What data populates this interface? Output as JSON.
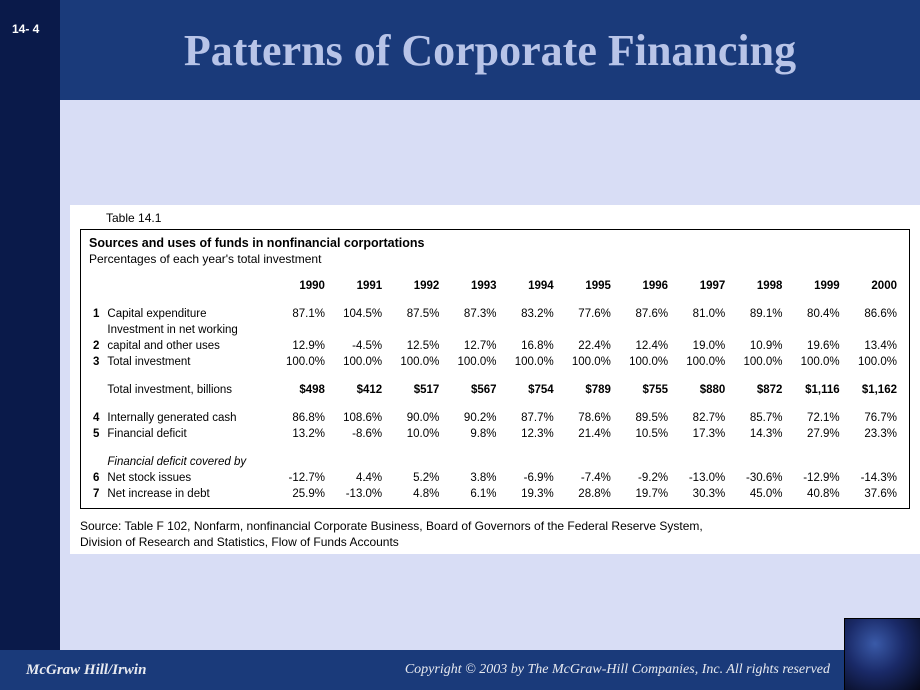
{
  "page_number": "14- 4",
  "title": "Patterns of Corporate Financing",
  "footer_left": "McGraw Hill/Irwin",
  "footer_right": "Copyright © 2003 by The McGraw-Hill Companies, Inc. All rights reserved",
  "table": {
    "label": "Table 14.1",
    "subtitle": "Sources and uses of funds in nonfinancial corportations",
    "subcaption": "Percentages of each year's total investment",
    "years": [
      "1990",
      "1991",
      "1992",
      "1993",
      "1994",
      "1995",
      "1996",
      "1997",
      "1998",
      "1999",
      "2000"
    ],
    "rows": [
      {
        "idx": "1",
        "label": "Capital expenditure",
        "cells": [
          "87.1%",
          "104.5%",
          "87.5%",
          "87.3%",
          "83.2%",
          "77.6%",
          "87.6%",
          "81.0%",
          "89.1%",
          "80.4%",
          "86.6%"
        ]
      },
      {
        "idx": "",
        "label": "Investment in net working",
        "cells": [
          "",
          "",
          "",
          "",
          "",
          "",
          "",
          "",
          "",
          "",
          ""
        ]
      },
      {
        "idx": "2",
        "label": "capital and other uses",
        "cells": [
          "12.9%",
          "-4.5%",
          "12.5%",
          "12.7%",
          "16.8%",
          "22.4%",
          "12.4%",
          "19.0%",
          "10.9%",
          "19.6%",
          "13.4%"
        ]
      },
      {
        "idx": "3",
        "label": "Total investment",
        "cells": [
          "100.0%",
          "100.0%",
          "100.0%",
          "100.0%",
          "100.0%",
          "100.0%",
          "100.0%",
          "100.0%",
          "100.0%",
          "100.0%",
          "100.0%"
        ]
      }
    ],
    "billions": {
      "label": "Total investment, billions",
      "cells": [
        "$498",
        "$412",
        "$517",
        "$567",
        "$754",
        "$789",
        "$755",
        "$880",
        "$872",
        "$1,116",
        "$1,162"
      ]
    },
    "rows2": [
      {
        "idx": "4",
        "label": "Internally generated cash",
        "cells": [
          "86.8%",
          "108.6%",
          "90.0%",
          "90.2%",
          "87.7%",
          "78.6%",
          "89.5%",
          "82.7%",
          "85.7%",
          "72.1%",
          "76.7%"
        ]
      },
      {
        "idx": "5",
        "label": "Financial deficit",
        "cells": [
          "13.2%",
          "-8.6%",
          "10.0%",
          "9.8%",
          "12.3%",
          "21.4%",
          "10.5%",
          "17.3%",
          "14.3%",
          "27.9%",
          "23.3%"
        ]
      }
    ],
    "deficit_header": "Financial deficit covered by",
    "rows3": [
      {
        "idx": "6",
        "label": "Net stock issues",
        "cells": [
          "-12.7%",
          "4.4%",
          "5.2%",
          "3.8%",
          "-6.9%",
          "-7.4%",
          "-9.2%",
          "-13.0%",
          "-30.6%",
          "-12.9%",
          "-14.3%"
        ]
      },
      {
        "idx": "7",
        "label": "Net increase in debt",
        "cells": [
          "25.9%",
          "-13.0%",
          "4.8%",
          "6.1%",
          "19.3%",
          "28.8%",
          "19.7%",
          "30.3%",
          "45.0%",
          "40.8%",
          "37.6%"
        ]
      }
    ],
    "source_line1": "Source: Table F 102, Nonfarm, nonfinancial Corporate Business, Board of Governors of the Federal Reserve System,",
    "source_line2": "Division of Research and Statistics, Flow of Funds Accounts"
  },
  "styling": {
    "slide_bg": "#0a1a4a",
    "header_bg": "#1a3a7a",
    "content_bg": "#d8ddf5",
    "title_color": "#b8c4e8",
    "title_fontsize": 44,
    "table_font": "Arial",
    "table_fontsize": 11.5,
    "footer_bg": "#1a3a7a",
    "footer_color": "#e8eaf0"
  }
}
